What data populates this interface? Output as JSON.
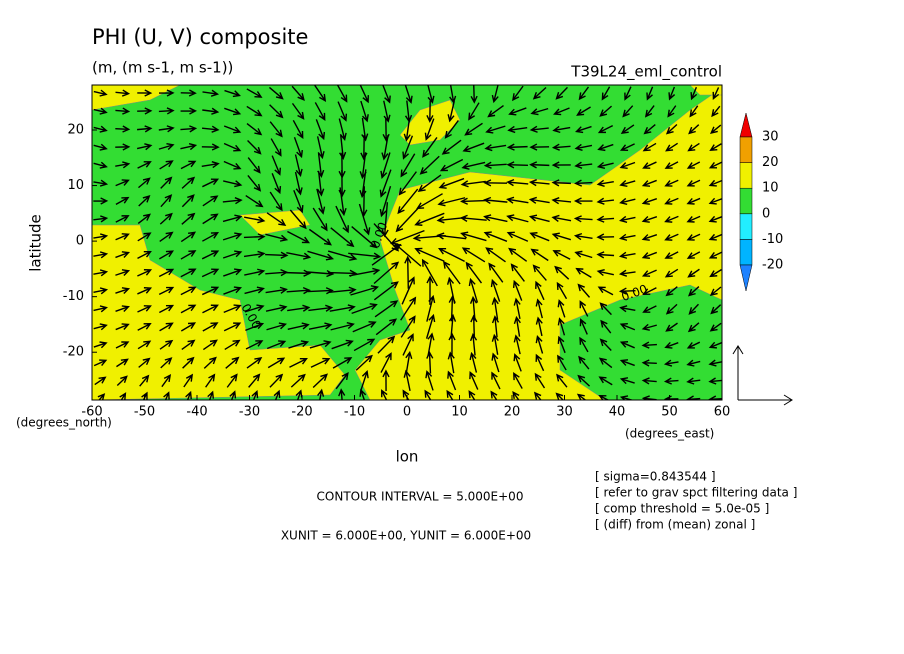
{
  "chart_data": {
    "type": "contour-vector",
    "title": "PHI (U, V) composite",
    "subtitle": "(m, (m s-1, m s-1))",
    "run_label": "T39L24_eml_control",
    "x_label": "lon",
    "y_label": "latitude",
    "x_unit_label": "(degrees_east)",
    "y_unit_label": "(degrees_north)",
    "xlim": [
      -60,
      60
    ],
    "ylim": [
      -28.6,
      28.1
    ],
    "xticks": [
      -60,
      -50,
      -40,
      -30,
      -20,
      -10,
      0,
      10,
      20,
      30,
      40,
      50,
      60
    ],
    "yticks": [
      -20,
      -10,
      0,
      10,
      20
    ],
    "contour_labels": [
      "0.00",
      "0.00",
      "0.00"
    ],
    "colorbar": {
      "levels": [
        -20,
        -10,
        0,
        10,
        20,
        30
      ],
      "colors": [
        "#1e82ff",
        "#00b4ff",
        "#22eeff",
        "#33dd33",
        "#f0f000",
        "#f0a000",
        "#f00000"
      ]
    },
    "contour_interval": "CONTOUR INTERVAL = 5.000E+00",
    "vector_units": "XUNIT = 6.000E+00, YUNIT = 6.000E+00",
    "notes": [
      "[ sigma=0.843544 ]",
      "[ refer to grav spct filtering data ]",
      "[ comp threshold = 5.0e-05 ]",
      "[ (diff) from (mean) zonal ]"
    ]
  }
}
